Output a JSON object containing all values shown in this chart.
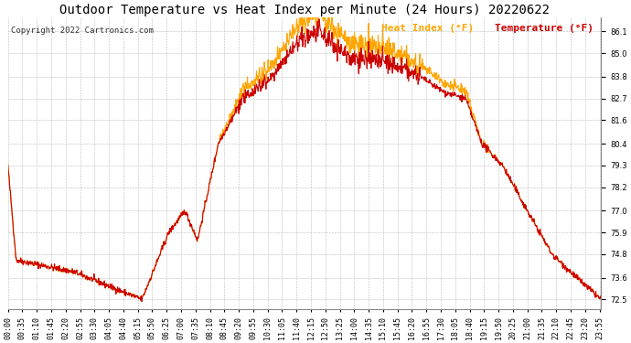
{
  "title": "Outdoor Temperature vs Heat Index per Minute (24 Hours) 20220622",
  "copyright": "Copyright 2022 Cartronics.com",
  "legend_heat": "Heat Index (°F)",
  "legend_temp": "Temperature (°F)",
  "heat_color": "#FFA500",
  "temp_color": "#cc0000",
  "background_color": "#ffffff",
  "grid_color": "#bbbbbb",
  "yticks": [
    72.5,
    73.6,
    74.8,
    75.9,
    77.0,
    78.2,
    79.3,
    80.4,
    81.6,
    82.7,
    83.8,
    85.0,
    86.1
  ],
  "ymin": 72.0,
  "ymax": 86.8,
  "title_fontsize": 10,
  "copyright_fontsize": 6.5,
  "legend_fontsize": 8,
  "tick_fontsize": 6
}
